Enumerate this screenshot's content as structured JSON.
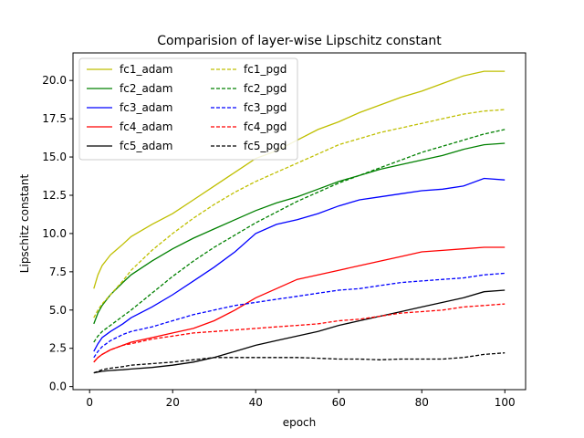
{
  "chart_data": {
    "type": "line",
    "title": "Comparision of layer-wise Lipschitz constant",
    "xlabel": "epoch",
    "ylabel": "Lipschitz constant",
    "xlim": [
      -4,
      105
    ],
    "ylim": [
      -0.2,
      21.8
    ],
    "xticks": [
      0,
      20,
      40,
      60,
      80,
      100
    ],
    "xtick_labels": [
      "0",
      "20",
      "40",
      "60",
      "80",
      "100"
    ],
    "yticks": [
      0.0,
      2.5,
      5.0,
      7.5,
      10.0,
      12.5,
      15.0,
      17.5,
      20.0
    ],
    "ytick_labels": [
      "0.0",
      "2.5",
      "5.0",
      "7.5",
      "10.0",
      "12.5",
      "15.0",
      "17.5",
      "20.0"
    ],
    "grid": false,
    "legend_position": "top-left",
    "legend_columns": 2,
    "series": [
      {
        "name": "fc1_adam",
        "color": "#bfbf00",
        "dash": "solid",
        "x": [
          1,
          2,
          3,
          5,
          8,
          10,
          15,
          20,
          25,
          30,
          35,
          40,
          45,
          50,
          55,
          60,
          65,
          70,
          75,
          80,
          85,
          90,
          95,
          100
        ],
        "y": [
          6.4,
          7.3,
          7.9,
          8.6,
          9.3,
          9.8,
          10.6,
          11.3,
          12.2,
          13.1,
          14.0,
          14.9,
          15.4,
          16.1,
          16.8,
          17.3,
          17.9,
          18.4,
          18.9,
          19.3,
          19.8,
          20.3,
          20.6,
          20.6
        ]
      },
      {
        "name": "fc2_adam",
        "color": "#008000",
        "dash": "solid",
        "x": [
          1,
          2,
          3,
          5,
          8,
          10,
          15,
          20,
          25,
          30,
          35,
          40,
          45,
          50,
          55,
          60,
          65,
          70,
          75,
          80,
          85,
          90,
          95,
          100
        ],
        "y": [
          4.1,
          4.8,
          5.3,
          6.0,
          6.8,
          7.3,
          8.2,
          9.0,
          9.7,
          10.3,
          10.9,
          11.5,
          12.0,
          12.4,
          12.9,
          13.4,
          13.8,
          14.2,
          14.5,
          14.8,
          15.1,
          15.5,
          15.8,
          15.9
        ]
      },
      {
        "name": "fc3_adam",
        "color": "#0000ff",
        "dash": "solid",
        "x": [
          1,
          2,
          3,
          5,
          8,
          10,
          15,
          20,
          25,
          30,
          35,
          40,
          45,
          50,
          55,
          60,
          65,
          70,
          75,
          80,
          85,
          90,
          95,
          100
        ],
        "y": [
          2.3,
          2.8,
          3.2,
          3.6,
          4.1,
          4.5,
          5.2,
          6.0,
          6.9,
          7.8,
          8.8,
          10.0,
          10.6,
          10.9,
          11.3,
          11.8,
          12.2,
          12.4,
          12.6,
          12.8,
          12.9,
          13.1,
          13.6,
          13.5
        ]
      },
      {
        "name": "fc4_adam",
        "color": "#ff0000",
        "dash": "solid",
        "x": [
          1,
          2,
          3,
          5,
          8,
          10,
          15,
          20,
          25,
          30,
          35,
          40,
          45,
          50,
          55,
          60,
          65,
          70,
          75,
          80,
          85,
          90,
          95,
          100
        ],
        "y": [
          1.6,
          1.9,
          2.1,
          2.4,
          2.7,
          2.9,
          3.2,
          3.5,
          3.8,
          4.3,
          5.0,
          5.8,
          6.4,
          7.0,
          7.3,
          7.6,
          7.9,
          8.2,
          8.5,
          8.8,
          8.9,
          9.0,
          9.1,
          9.1
        ]
      },
      {
        "name": "fc5_adam",
        "color": "#000000",
        "dash": "solid",
        "x": [
          1,
          2,
          3,
          5,
          8,
          10,
          15,
          20,
          25,
          30,
          35,
          40,
          45,
          50,
          55,
          60,
          65,
          70,
          75,
          80,
          85,
          90,
          95,
          100
        ],
        "y": [
          0.9,
          0.95,
          1.0,
          1.05,
          1.1,
          1.15,
          1.25,
          1.4,
          1.6,
          1.9,
          2.3,
          2.7,
          3.0,
          3.3,
          3.6,
          4.0,
          4.3,
          4.6,
          4.9,
          5.2,
          5.5,
          5.8,
          6.2,
          6.3
        ]
      },
      {
        "name": "fc1_pgd",
        "color": "#bfbf00",
        "dash": "dashed",
        "x": [
          1,
          2,
          3,
          5,
          8,
          10,
          15,
          20,
          25,
          30,
          35,
          40,
          45,
          50,
          55,
          60,
          65,
          70,
          75,
          80,
          85,
          90,
          95,
          100
        ],
        "y": [
          4.5,
          5.0,
          5.4,
          6.0,
          6.9,
          7.6,
          8.9,
          10.0,
          11.0,
          11.9,
          12.7,
          13.4,
          14.0,
          14.6,
          15.2,
          15.8,
          16.2,
          16.6,
          16.9,
          17.2,
          17.5,
          17.8,
          18.0,
          18.1
        ]
      },
      {
        "name": "fc2_pgd",
        "color": "#008000",
        "dash": "dashed",
        "x": [
          1,
          2,
          3,
          5,
          8,
          10,
          15,
          20,
          25,
          30,
          35,
          40,
          45,
          50,
          55,
          60,
          65,
          70,
          75,
          80,
          85,
          90,
          95,
          100
        ],
        "y": [
          2.9,
          3.3,
          3.6,
          4.0,
          4.6,
          5.0,
          6.1,
          7.2,
          8.2,
          9.1,
          9.9,
          10.7,
          11.4,
          12.1,
          12.7,
          13.3,
          13.8,
          14.3,
          14.8,
          15.3,
          15.7,
          16.1,
          16.5,
          16.8
        ]
      },
      {
        "name": "fc3_pgd",
        "color": "#0000ff",
        "dash": "dashed",
        "x": [
          1,
          2,
          3,
          5,
          8,
          10,
          15,
          20,
          25,
          30,
          35,
          40,
          45,
          50,
          55,
          60,
          65,
          70,
          75,
          80,
          85,
          90,
          95,
          100
        ],
        "y": [
          1.9,
          2.3,
          2.6,
          3.0,
          3.4,
          3.6,
          3.9,
          4.3,
          4.7,
          5.0,
          5.3,
          5.5,
          5.7,
          5.9,
          6.1,
          6.3,
          6.4,
          6.6,
          6.8,
          6.9,
          7.0,
          7.1,
          7.3,
          7.4
        ]
      },
      {
        "name": "fc4_pgd",
        "color": "#ff0000",
        "dash": "dashed",
        "x": [
          1,
          2,
          3,
          5,
          8,
          10,
          15,
          20,
          25,
          30,
          35,
          40,
          45,
          50,
          55,
          60,
          65,
          70,
          75,
          80,
          85,
          90,
          95,
          100
        ],
        "y": [
          1.6,
          1.9,
          2.1,
          2.4,
          2.7,
          2.8,
          3.1,
          3.3,
          3.5,
          3.6,
          3.7,
          3.8,
          3.9,
          4.0,
          4.1,
          4.3,
          4.4,
          4.6,
          4.8,
          4.9,
          5.0,
          5.2,
          5.3,
          5.4
        ]
      },
      {
        "name": "fc5_pgd",
        "color": "#000000",
        "dash": "dashed",
        "x": [
          1,
          2,
          3,
          5,
          8,
          10,
          15,
          20,
          25,
          30,
          35,
          40,
          45,
          50,
          55,
          60,
          65,
          70,
          75,
          80,
          85,
          90,
          95,
          100
        ],
        "y": [
          0.9,
          1.0,
          1.1,
          1.2,
          1.3,
          1.4,
          1.5,
          1.6,
          1.75,
          1.9,
          1.9,
          1.9,
          1.9,
          1.9,
          1.85,
          1.8,
          1.8,
          1.75,
          1.8,
          1.8,
          1.8,
          1.9,
          2.1,
          2.2
        ]
      }
    ]
  }
}
